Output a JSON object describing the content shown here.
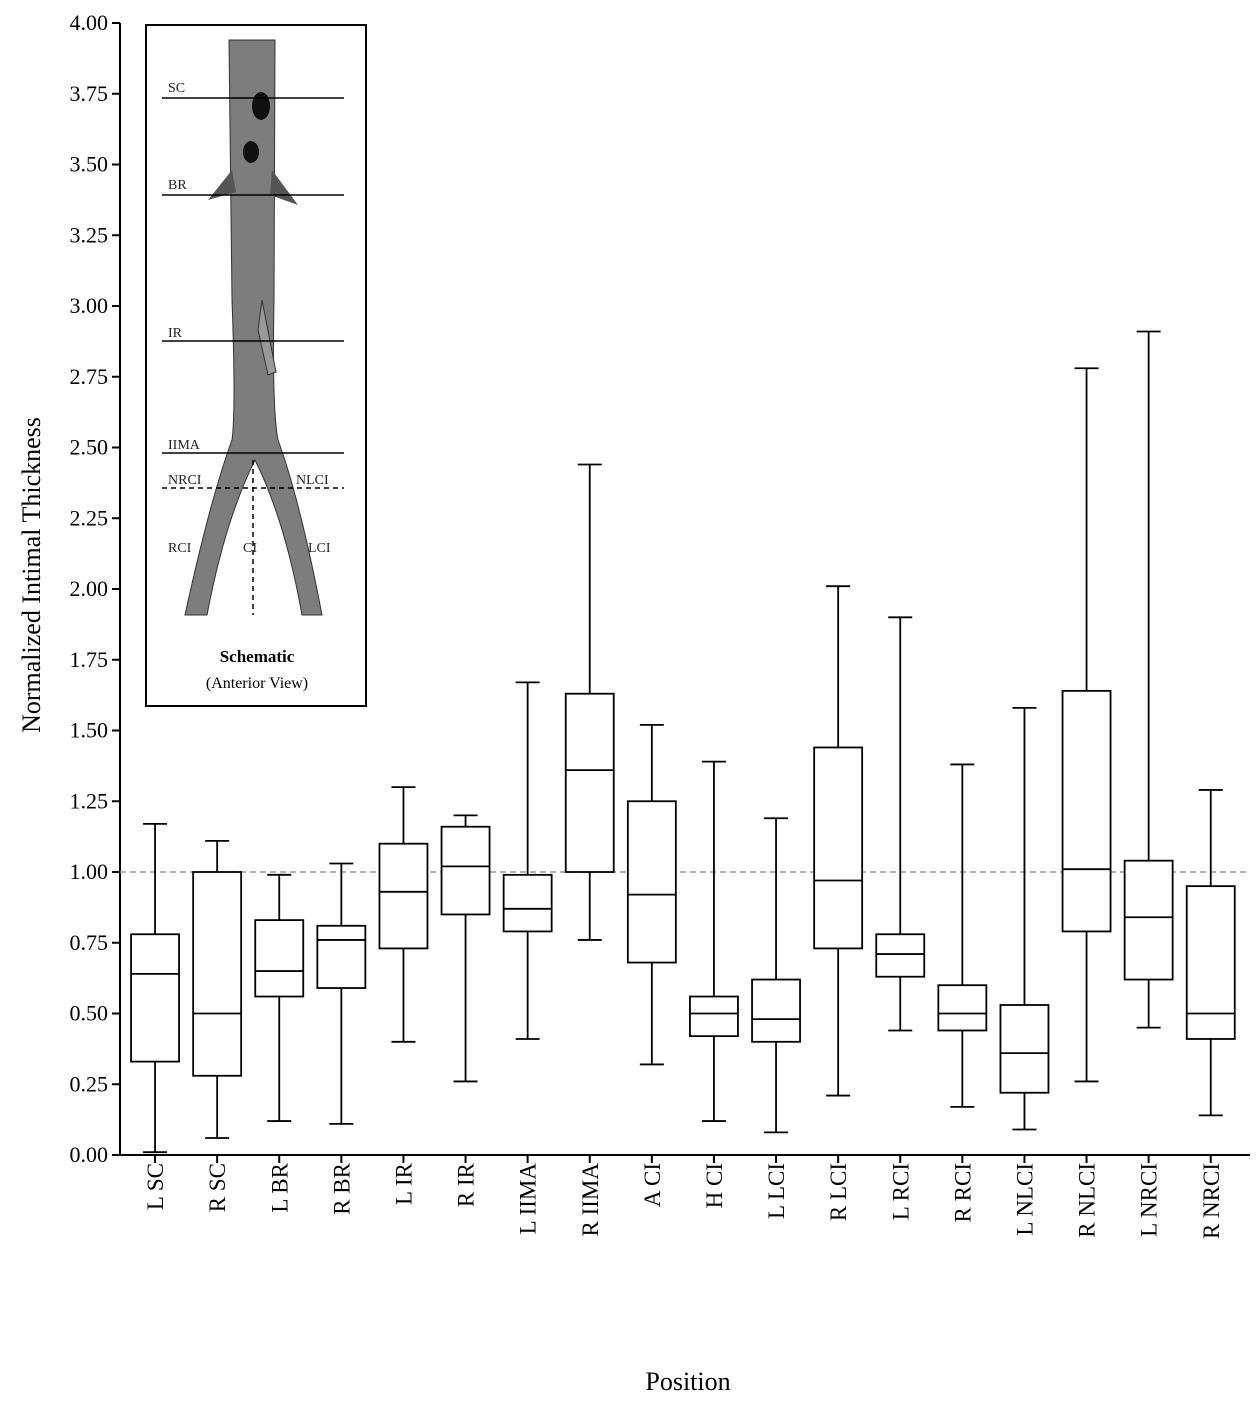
{
  "chart_data": {
    "type": "box",
    "xlabel": "Position",
    "ylabel": "Normalized Intimal Thickness",
    "categories": [
      "L SC",
      "R SC",
      "L BR",
      "R BR",
      "L IR",
      "R IR",
      "L IIMA",
      "R IIMA",
      "A CI",
      "H CI",
      "L LCI",
      "R LCI",
      "L RCI",
      "R RCI",
      "L NLCI",
      "R NLCI",
      "L NRCI",
      "R NRCI"
    ],
    "min": [
      0.01,
      0.06,
      0.12,
      0.11,
      0.4,
      0.26,
      0.41,
      0.76,
      0.32,
      0.12,
      0.08,
      0.21,
      0.44,
      0.17,
      0.09,
      0.26,
      0.45,
      0.14
    ],
    "q1": [
      0.33,
      0.28,
      0.56,
      0.59,
      0.73,
      0.85,
      0.79,
      1.0,
      0.68,
      0.42,
      0.4,
      0.73,
      0.63,
      0.44,
      0.22,
      0.79,
      0.62,
      0.41
    ],
    "median": [
      0.64,
      0.5,
      0.65,
      0.76,
      0.93,
      1.02,
      0.87,
      1.36,
      0.92,
      0.5,
      0.48,
      0.97,
      0.71,
      0.5,
      0.36,
      1.01,
      0.84,
      0.5
    ],
    "q3": [
      0.78,
      1.0,
      0.83,
      0.81,
      1.1,
      1.16,
      0.99,
      1.63,
      1.25,
      0.56,
      0.62,
      1.44,
      0.78,
      0.6,
      0.53,
      1.64,
      1.04,
      0.95
    ],
    "max": [
      1.17,
      1.11,
      0.99,
      1.03,
      1.3,
      1.2,
      1.67,
      2.44,
      1.52,
      1.39,
      1.19,
      2.01,
      1.9,
      1.38,
      1.58,
      2.78,
      2.91,
      1.29
    ],
    "color": "#000000",
    "reference_line": 1,
    "ylim": [
      0,
      4
    ],
    "yticks": [
      {
        "value": 0,
        "label": "0.00"
      },
      {
        "value": 0.25,
        "label": "0.25"
      },
      {
        "value": 0.5,
        "label": "0.50"
      },
      {
        "value": 0.75,
        "label": "0.75"
      },
      {
        "value": 1,
        "label": "1.00"
      },
      {
        "value": 1.25,
        "label": "1.25"
      },
      {
        "value": 1.5,
        "label": "1.50"
      },
      {
        "value": 1.75,
        "label": "1.75"
      },
      {
        "value": 2,
        "label": "2.00"
      },
      {
        "value": 2.25,
        "label": "2.25"
      },
      {
        "value": 2.5,
        "label": "2.50"
      },
      {
        "value": 2.75,
        "label": "2.75"
      },
      {
        "value": 3,
        "label": "3.00"
      },
      {
        "value": 3.25,
        "label": "3.25"
      },
      {
        "value": 3.5,
        "label": "3.50"
      },
      {
        "value": 3.75,
        "label": "3.75"
      },
      {
        "value": 4,
        "label": "4.00"
      }
    ]
  },
  "inset": {
    "sc": "SC",
    "br": "BR",
    "ir": "IR",
    "iima": "IIMA",
    "nrci": "NRCI",
    "nlci": "NLCI",
    "rci": "RCI",
    "ci": "CI",
    "lci": "LCI",
    "title": "Schematic",
    "subtitle": "(Anterior View)"
  }
}
